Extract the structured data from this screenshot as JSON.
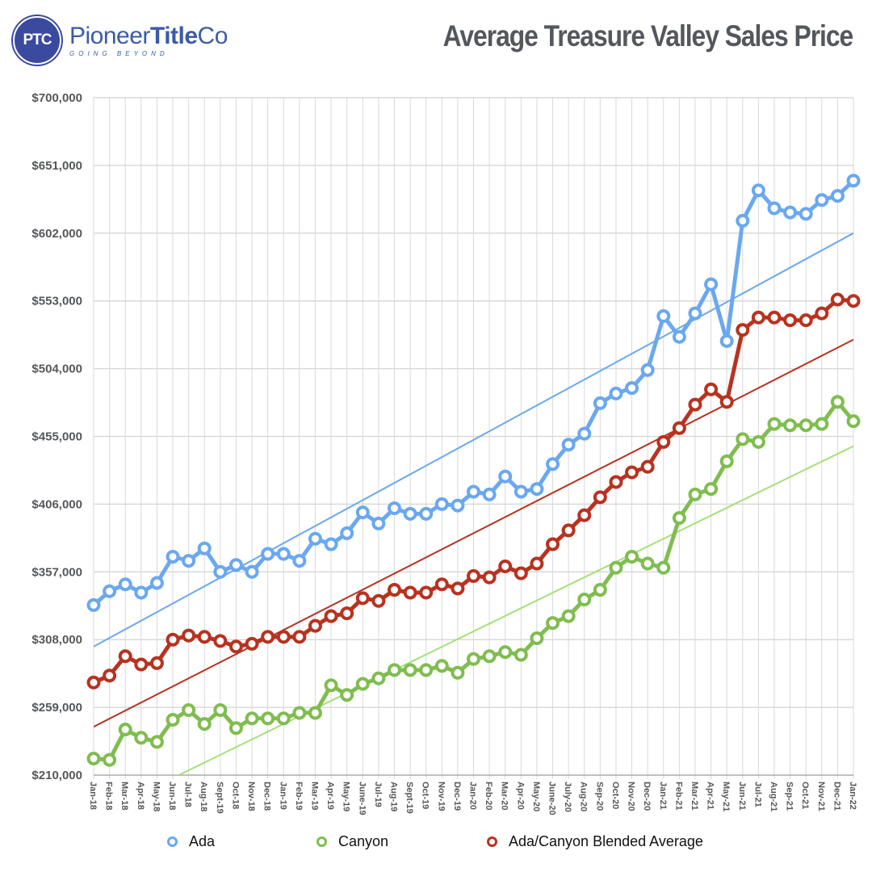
{
  "header": {
    "logo_badge": "PTC",
    "logo_name_regular": "Pioneer",
    "logo_name_bold": "Title",
    "logo_name_suffix": "Co",
    "logo_tagline": "GOING BEYOND",
    "title": "Average Treasure Valley Sales Price"
  },
  "colors": {
    "ada": "#6aa8f0",
    "ada_trend": "#6aa8f0",
    "canyon": "#80bd50",
    "canyon_trend": "#a6e07a",
    "blended": "#b83220",
    "blended_trend": "#b83220",
    "grid": "#d9d9d9",
    "logo": "#3a4a9f"
  },
  "chart_data": {
    "type": "line",
    "title": "Average Treasure Valley Sales Price",
    "xlabel": "",
    "ylabel": "",
    "ylim": [
      210000,
      700000
    ],
    "yticks": [
      210000,
      259000,
      308000,
      357000,
      406000,
      455000,
      504000,
      553000,
      602000,
      651000,
      700000
    ],
    "ytick_labels": [
      "$210,000",
      "$259,000",
      "$308,000",
      "$357,000",
      "$406,000",
      "$455,000",
      "$504,000",
      "$553,000",
      "$602,000",
      "$651,000",
      "$700,000"
    ],
    "grid": true,
    "legend_position": "bottom",
    "categories": [
      "Jan-18",
      "Feb-18",
      "Mar-18",
      "Apr-18",
      "May-18",
      "Jun-18",
      "Jul-18",
      "Aug-18",
      "Sept-19",
      "Oct-18",
      "Nov-18",
      "Dec-18",
      "Jan-19",
      "Feb-19",
      "Mar-19",
      "Apr-19",
      "May-19",
      "June-19",
      "Jul-19",
      "Aug-19",
      "Sept-19",
      "Oct-19",
      "Nov-19",
      "Dec-19",
      "Jan-20",
      "Feb-20",
      "Mar-20",
      "Apr-20",
      "May-20",
      "June-20",
      "July-20",
      "Aug-20",
      "Sep-20",
      "Oct-20",
      "Nov-20",
      "Dec-20",
      "Jan-21",
      "Feb-21",
      "Mar-21",
      "Apr-21",
      "May-21",
      "Jun-21",
      "Jul-21",
      "Aug-21",
      "Sep-21",
      "Oct-21",
      "Nov-21",
      "Dec-21",
      "Jan-22"
    ],
    "series": [
      {
        "name": "Ada",
        "color_key": "ada",
        "values": [
          333000,
          343000,
          348000,
          342000,
          349000,
          368000,
          365000,
          374000,
          357000,
          362000,
          357000,
          370000,
          370000,
          365000,
          381000,
          377000,
          385000,
          400000,
          392000,
          403000,
          399000,
          399000,
          406000,
          405000,
          415000,
          413000,
          426000,
          415000,
          417000,
          435000,
          449000,
          457000,
          479000,
          486000,
          490000,
          503000,
          542000,
          527000,
          544000,
          565000,
          524000,
          611000,
          633000,
          620000,
          617000,
          616000,
          626000,
          629000,
          640000
        ]
      },
      {
        "name": "Canyon",
        "color_key": "canyon",
        "values": [
          222000,
          221000,
          243000,
          237000,
          234000,
          250000,
          257000,
          247000,
          257000,
          244000,
          251000,
          251000,
          251000,
          255000,
          255000,
          275000,
          268000,
          276000,
          280000,
          286000,
          286000,
          286000,
          289000,
          284000,
          294000,
          296000,
          299000,
          297000,
          309000,
          320000,
          325000,
          337000,
          344000,
          360000,
          368000,
          363000,
          360000,
          396000,
          413000,
          417000,
          437000,
          453000,
          451000,
          464000,
          463000,
          463000,
          464000,
          480000,
          466000
        ]
      },
      {
        "name": "Ada/Canyon Blended Average",
        "color_key": "blended",
        "values": [
          277000,
          282000,
          296000,
          290000,
          291000,
          308000,
          311000,
          310000,
          307000,
          303000,
          305000,
          310000,
          310000,
          310000,
          318000,
          325000,
          327000,
          338000,
          336000,
          344000,
          342000,
          342000,
          348000,
          345000,
          354000,
          353000,
          361000,
          356000,
          363000,
          377000,
          387000,
          398000,
          411000,
          422000,
          429000,
          433000,
          451000,
          461000,
          478000,
          489000,
          480000,
          532000,
          541000,
          541000,
          539000,
          539000,
          544000,
          554000,
          553000
        ]
      }
    ],
    "trendlines": [
      {
        "series": "Ada",
        "color_key": "ada_trend",
        "start": 303000,
        "end": 602000
      },
      {
        "series": "Ada/Canyon Blended Average",
        "color_key": "blended_trend",
        "start": 245000,
        "end": 525000
      },
      {
        "series": "Canyon",
        "color_key": "canyon_trend",
        "start": 180000,
        "end": 448000
      }
    ]
  },
  "legend": {
    "items": [
      {
        "label": "Ada",
        "color_key": "ada"
      },
      {
        "label": "Canyon",
        "color_key": "canyon"
      },
      {
        "label": "Ada/Canyon Blended Average",
        "color_key": "blended"
      }
    ]
  }
}
